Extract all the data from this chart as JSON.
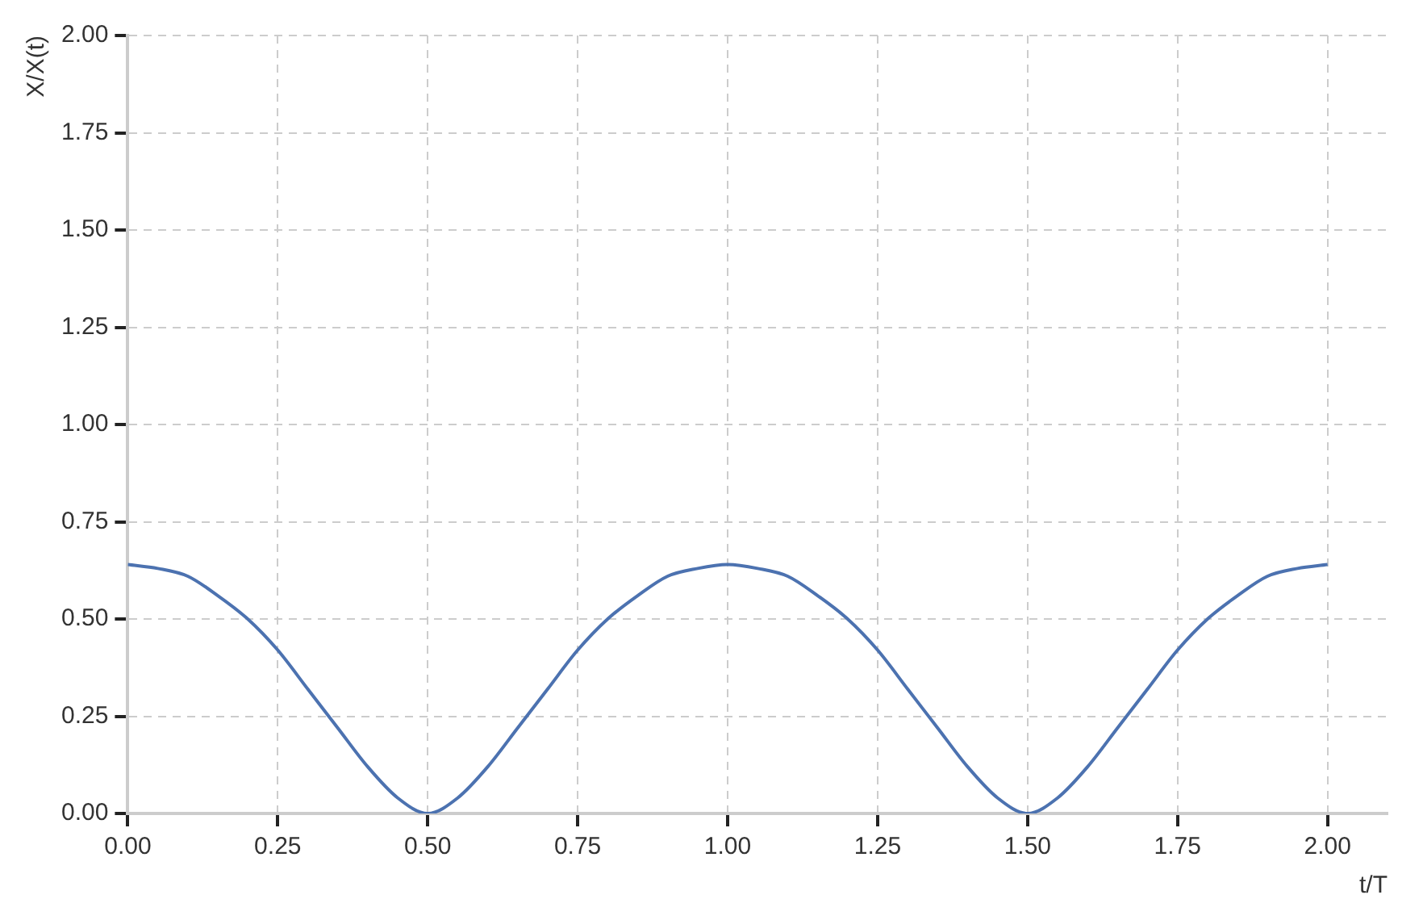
{
  "chart_data": {
    "type": "line",
    "xlabel": "t/T",
    "ylabel": "X/X(t)",
    "x": [
      0,
      0.05,
      0.1,
      0.15,
      0.2,
      0.25,
      0.3,
      0.35,
      0.4,
      0.45,
      0.5,
      0.55,
      0.6,
      0.65,
      0.7,
      0.75,
      0.8,
      0.85,
      0.9,
      0.95,
      1,
      1.05,
      1.1,
      1.15,
      1.2,
      1.25,
      1.3,
      1.35,
      1.4,
      1.45,
      1.5,
      1.55,
      1.6,
      1.65,
      1.7,
      1.75,
      1.8,
      1.85,
      1.9,
      1.95,
      2
    ],
    "series": [
      {
        "color": "#4c72b0",
        "values": [
          0.64,
          0.63,
          0.61,
          0.56,
          0.5,
          0.42,
          0.32,
          0.22,
          0.12,
          0.04,
          0,
          0.04,
          0.12,
          0.22,
          0.32,
          0.42,
          0.5,
          0.56,
          0.61,
          0.63,
          0.64,
          0.63,
          0.61,
          0.56,
          0.5,
          0.42,
          0.32,
          0.22,
          0.12,
          0.04,
          0,
          0.04,
          0.12,
          0.22,
          0.32,
          0.42,
          0.5,
          0.56,
          0.61,
          0.63,
          0.64
        ]
      }
    ],
    "xlim": [
      0,
      2.1
    ],
    "ylim": [
      0,
      2
    ],
    "xticks": [
      {
        "value": 0,
        "label": "0.00"
      },
      {
        "value": 0.25,
        "label": "0.25"
      },
      {
        "value": 0.5,
        "label": "0.50"
      },
      {
        "value": 0.75,
        "label": "0.75"
      },
      {
        "value": 1,
        "label": "1.00"
      },
      {
        "value": 1.25,
        "label": "1.25"
      },
      {
        "value": 1.5,
        "label": "1.50"
      },
      {
        "value": 1.75,
        "label": "1.75"
      },
      {
        "value": 2,
        "label": "2.00"
      }
    ],
    "yticks": [
      {
        "value": 0,
        "label": "0.00"
      },
      {
        "value": 0.25,
        "label": "0.25"
      },
      {
        "value": 0.5,
        "label": "0.50"
      },
      {
        "value": 0.75,
        "label": "0.75"
      },
      {
        "value": 1,
        "label": "1.00"
      },
      {
        "value": 1.25,
        "label": "1.25"
      },
      {
        "value": 1.5,
        "label": "1.50"
      },
      {
        "value": 1.75,
        "label": "1.75"
      },
      {
        "value": 2,
        "label": "2.00"
      }
    ],
    "grid": true,
    "legend": false,
    "marker": "none",
    "line_style": "solid"
  }
}
